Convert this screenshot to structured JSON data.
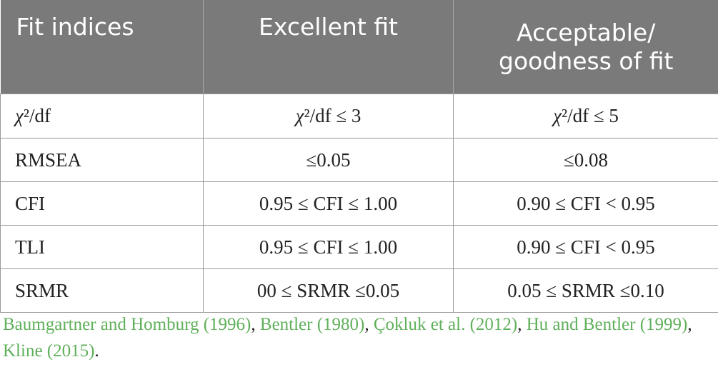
{
  "table": {
    "headers": [
      "Fit indices",
      "Excellent fit",
      "Acceptable/\ngoodness of fit"
    ],
    "header_lines": {
      "col3_line1": "Acceptable/",
      "col3_line2": "goodness of fit"
    },
    "rows": [
      [
        "χ²/df",
        "χ²/df ≤ 3",
        "χ²/df ≤ 5"
      ],
      [
        "RMSEA",
        "≤0.05",
        "≤0.08"
      ],
      [
        "CFI",
        "0.95 ≤ CFI ≤ 1.00",
        "0.90 ≤ CFI < 0.95"
      ],
      [
        "TLI",
        "0.95 ≤ CFI ≤ 1.00",
        "0.90 ≤ CFI < 0.95"
      ],
      [
        "SRMR",
        "00 ≤ SRMR ≤0.05",
        "0.05 ≤ SRMR ≤0.10"
      ]
    ]
  },
  "footnote": {
    "refs": [
      "Baumgartner and Homburg (1996)",
      "Bentler (1980)",
      "Çokluk et al. (2012)",
      "Hu and Bentler (1999)",
      "Kline (2015)"
    ],
    "separator": ", ",
    "end": "."
  },
  "colors": {
    "header_bg": "#7a7a7a",
    "header_text": "#ffffff",
    "reference_link": "#5fb05a",
    "body_text": "#222222",
    "grid": "#9a9a9a"
  }
}
